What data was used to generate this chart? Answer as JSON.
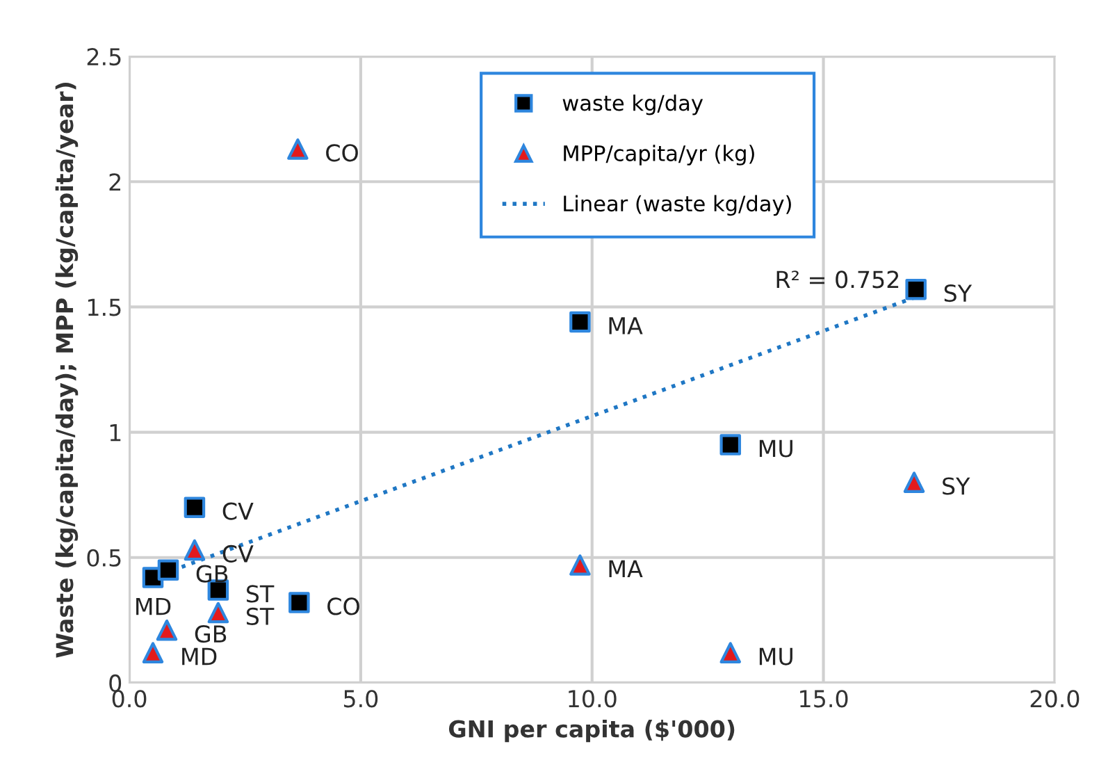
{
  "chart_data": {
    "type": "scatter",
    "xlabel": "GNI per capita ($'000)",
    "ylabel": "Waste (kg/capita/day); MPP (kg/capita/year)",
    "xlim": [
      0,
      20
    ],
    "xticks": [
      {
        "value": 0,
        "label": "0.0"
      },
      {
        "value": 5,
        "label": "5.0"
      },
      {
        "value": 10,
        "label": "10.0"
      },
      {
        "value": 15,
        "label": "15.0"
      },
      {
        "value": 20,
        "label": "20.0"
      }
    ],
    "ylim": [
      0,
      2.5
    ],
    "yticks": [
      0,
      0.5,
      1,
      1.5,
      2,
      2.5
    ],
    "grid": true,
    "legend": "top",
    "series": [
      {
        "name": "waste kg/day",
        "marker": "square",
        "color": "#000000",
        "x": [
          0.51,
          0.84,
          1.41,
          1.92,
          3.67,
          9.74,
          12.99,
          17.0
        ],
        "values": [
          0.42,
          0.45,
          0.7,
          0.37,
          0.32,
          1.44,
          0.95,
          1.57
        ]
      },
      {
        "name": "MPP/capita/yr (kg)",
        "marker": "triangle",
        "color": "#e31a1c",
        "x": [
          0.51,
          0.81,
          1.41,
          1.92,
          3.64,
          9.74,
          12.99,
          16.96
        ],
        "values": [
          0.12,
          0.21,
          0.53,
          0.28,
          2.13,
          0.47,
          0.12,
          0.8
        ]
      },
      {
        "name": "Linear (waste kg/day)",
        "type": "line",
        "marker": "none",
        "line_style": "dotted",
        "color": "#1f77c4",
        "x": [
          0.51,
          17.0
        ],
        "values": [
          0.42,
          1.54
        ]
      }
    ],
    "annotations": [
      {
        "text": "MD",
        "x": 0.51,
        "y": 0.42
      },
      {
        "text": "GB",
        "x": 0.84,
        "y": 0.45
      },
      {
        "text": "CV",
        "x": 1.41,
        "y": 0.7
      },
      {
        "text": "ST",
        "x": 1.92,
        "y": 0.37
      },
      {
        "text": "CO",
        "x": 3.67,
        "y": 0.32
      },
      {
        "text": "MA",
        "x": 9.74,
        "y": 1.44
      },
      {
        "text": "MU",
        "x": 12.99,
        "y": 0.95
      },
      {
        "text": "SY",
        "x": 17.0,
        "y": 1.57
      },
      {
        "text": "MD",
        "x": 0.51,
        "y": 0.12
      },
      {
        "text": "GB",
        "x": 0.81,
        "y": 0.21
      },
      {
        "text": "CV",
        "x": 1.41,
        "y": 0.53
      },
      {
        "text": "ST",
        "x": 1.92,
        "y": 0.28
      },
      {
        "text": "CO",
        "x": 3.64,
        "y": 2.13
      },
      {
        "text": "MA",
        "x": 9.74,
        "y": 0.47
      },
      {
        "text": "MU",
        "x": 12.99,
        "y": 0.12
      },
      {
        "text": "SY",
        "x": 16.96,
        "y": 0.8
      },
      {
        "text": "R² = 0.752",
        "x": 17.0,
        "y": 1.54
      }
    ]
  }
}
